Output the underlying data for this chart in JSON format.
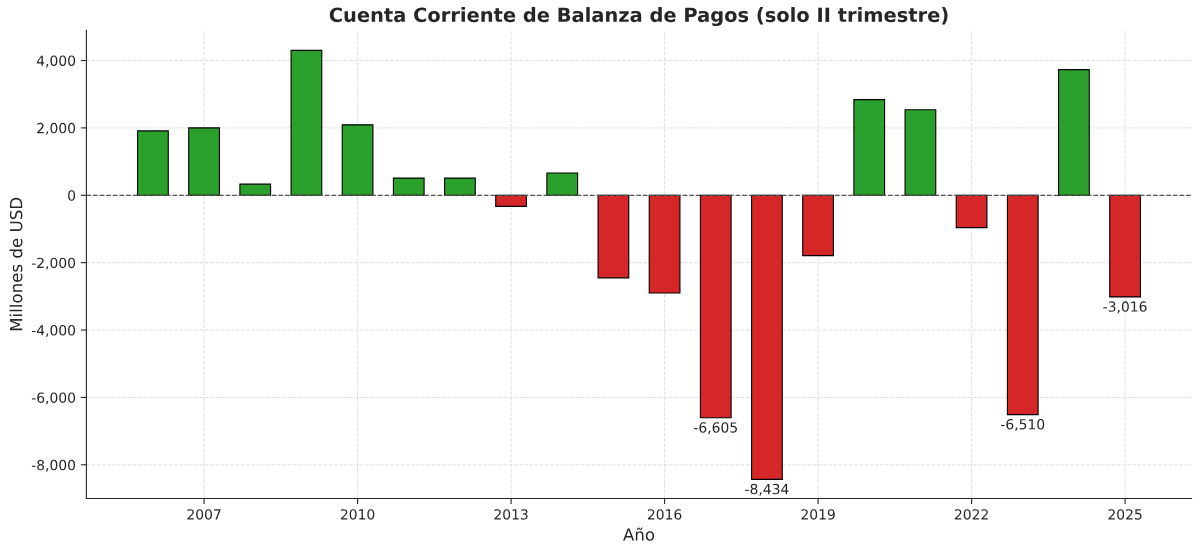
{
  "chart_data": {
    "type": "bar",
    "title": "Cuenta Corriente de Balanza de Pagos (solo II trimestre)",
    "xlabel": "Año",
    "ylabel": "Millones de USD",
    "x": [
      2006,
      2007,
      2008,
      2009,
      2010,
      2011,
      2012,
      2013,
      2014,
      2015,
      2016,
      2017,
      2018,
      2019,
      2020,
      2021,
      2022,
      2023,
      2024,
      2025
    ],
    "values": [
      1910,
      2000,
      330,
      4300,
      2090,
      510,
      510,
      -330,
      660,
      -2450,
      -2900,
      -6605,
      -8434,
      -1790,
      2840,
      2540,
      -960,
      -6510,
      3730,
      -3016
    ],
    "colors": [
      "#2ca02c",
      "#2ca02c",
      "#2ca02c",
      "#2ca02c",
      "#2ca02c",
      "#2ca02c",
      "#2ca02c",
      "#d62728",
      "#2ca02c",
      "#d62728",
      "#d62728",
      "#d62728",
      "#d62728",
      "#d62728",
      "#2ca02c",
      "#2ca02c",
      "#d62728",
      "#d62728",
      "#2ca02c",
      "#d62728"
    ],
    "value_labels": [
      null,
      null,
      null,
      null,
      null,
      null,
      null,
      null,
      null,
      null,
      null,
      "-6,605",
      "-8,434",
      null,
      null,
      null,
      null,
      "-6,510",
      null,
      "-3,016"
    ],
    "xlim": [
      2004.7,
      2026.3
    ],
    "xticks": [
      2007,
      2010,
      2013,
      2016,
      2019,
      2022,
      2025
    ],
    "ylim": [
      -9000,
      4900
    ],
    "yticks": [
      {
        "value": -8000,
        "label": "-8,000"
      },
      {
        "value": -6000,
        "label": "-6,000"
      },
      {
        "value": -4000,
        "label": "-4,000"
      },
      {
        "value": -2000,
        "label": "-2,000"
      },
      {
        "value": 0,
        "label": "0"
      },
      {
        "value": 2000,
        "label": "2,000"
      },
      {
        "value": 4000,
        "label": "4,000"
      }
    ],
    "ref_lines": [
      {
        "axis": "y",
        "value": 0,
        "color": "#555555",
        "line_style": "dashed"
      }
    ],
    "grid": true
  }
}
